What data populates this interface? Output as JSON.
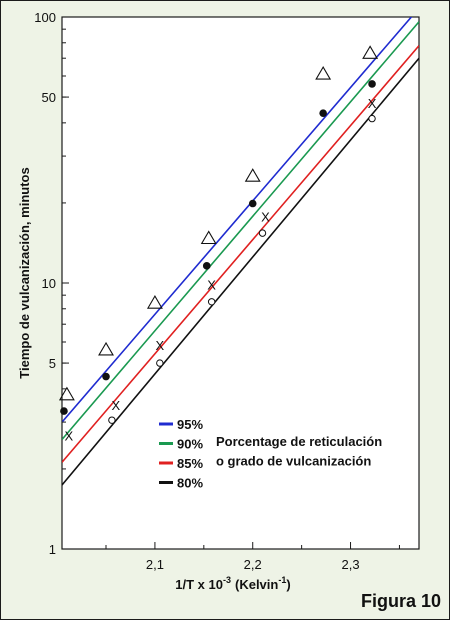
{
  "figure_label": "Figura 10",
  "chart_data": {
    "type": "scatter",
    "y_scale": "log",
    "xlabel": "1/T x 10",
    "xlabel_sup": "-3",
    "xlabel_unit": "(Kelvin",
    "xlabel_unit_sup": "-1",
    "xlabel_close": ")",
    "ylabel": "Tiempo de vulcanización, minutos",
    "xlim": [
      2.005,
      2.37
    ],
    "ylim": [
      1,
      100
    ],
    "x_ticks": [
      2.1,
      2.2,
      2.3
    ],
    "x_tick_labels": [
      "2,1",
      "2,2",
      "2,3"
    ],
    "y_ticks": [
      1,
      5,
      10,
      50,
      100
    ],
    "y_tick_labels": [
      "1",
      "5",
      "10",
      "50",
      "100"
    ],
    "grid": false,
    "legend_title_lines": [
      "Porcentage de reticulación",
      "o grado de vulcanización"
    ],
    "legend_position": "lower-right",
    "series": [
      {
        "name": "95%",
        "color": "#1f2bd0",
        "marker": "triangle-open",
        "line": {
          "x": [
            2.005,
            2.37
          ],
          "y": [
            3.0,
            108
          ]
        },
        "points": [
          [
            2.01,
            3.8
          ],
          [
            2.05,
            5.6
          ],
          [
            2.1,
            8.4
          ],
          [
            2.155,
            14.7
          ],
          [
            2.2,
            25.2
          ],
          [
            2.272,
            61
          ],
          [
            2.32,
            73
          ]
        ]
      },
      {
        "name": "90%",
        "color": "#1a9950",
        "marker": "circle-filled",
        "line": {
          "x": [
            2.005,
            2.37
          ],
          "y": [
            2.58,
            96
          ]
        },
        "points": [
          [
            2.007,
            3.3
          ],
          [
            2.05,
            4.45
          ],
          [
            2.153,
            11.6
          ],
          [
            2.2,
            19.9
          ],
          [
            2.272,
            43.5
          ],
          [
            2.322,
            56
          ]
        ]
      },
      {
        "name": "85%",
        "color": "#e02020",
        "marker": "x",
        "line": {
          "x": [
            2.005,
            2.37
          ],
          "y": [
            2.12,
            78
          ]
        },
        "points": [
          [
            2.012,
            2.65
          ],
          [
            2.06,
            3.45
          ],
          [
            2.105,
            5.8
          ],
          [
            2.158,
            9.8
          ],
          [
            2.213,
            17.6
          ],
          [
            2.322,
            47
          ]
        ]
      },
      {
        "name": "80%",
        "color": "#111111",
        "marker": "circle-open",
        "line": {
          "x": [
            2.005,
            2.37
          ],
          "y": [
            1.74,
            70
          ]
        },
        "points": [
          [
            2.056,
            3.05
          ],
          [
            2.105,
            5.0
          ],
          [
            2.158,
            8.5
          ],
          [
            2.21,
            15.4
          ],
          [
            2.322,
            41.5
          ]
        ]
      }
    ]
  }
}
